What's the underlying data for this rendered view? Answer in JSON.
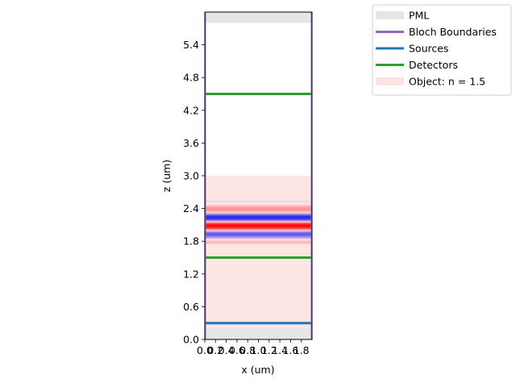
{
  "chart_data": {
    "type": "heatmap",
    "xlabel": "x (um)",
    "ylabel": "z (um)",
    "xlim": [
      0.0,
      2.0
    ],
    "ylim": [
      0.0,
      6.0
    ],
    "x_ticks": [
      "0.0",
      "0.2",
      "0.4",
      "0.6",
      "0.8",
      "1.0",
      "1.2",
      "1.4",
      "1.6",
      "1.8"
    ],
    "x_tick_values": [
      0.0,
      0.2,
      0.4,
      0.6,
      0.8,
      1.0,
      1.2,
      1.4,
      1.6,
      1.8
    ],
    "y_ticks": [
      "0.0",
      "0.6",
      "1.2",
      "1.8",
      "2.4",
      "3.0",
      "3.6",
      "4.2",
      "4.8",
      "5.4"
    ],
    "y_tick_values": [
      0.0,
      0.6,
      1.2,
      1.8,
      2.4,
      3.0,
      3.6,
      4.2,
      4.8,
      5.4
    ],
    "legend_position": "outside-top-right",
    "legend": [
      {
        "label": "PML",
        "color": "#e6e6e6",
        "style": "patch"
      },
      {
        "label": "Bloch Boundaries",
        "color": "#9467bd",
        "style": "line"
      },
      {
        "label": "Sources",
        "color": "#1f77b4",
        "style": "line"
      },
      {
        "label": "Detectors",
        "color": "#2ca02c",
        "style": "line"
      },
      {
        "label": "Object: n = 1.5",
        "color": "#fde2e2",
        "style": "patch"
      }
    ],
    "pml": [
      {
        "z0": 0.0,
        "z1": 0.2
      },
      {
        "z0": 5.8,
        "z1": 6.0
      }
    ],
    "bloch_boundaries_x": [
      0.0,
      2.0
    ],
    "sources_z": [
      0.3
    ],
    "detectors_z": [
      1.5,
      4.5
    ],
    "object": {
      "z0": 0.0,
      "z1": 3.0,
      "n": 1.5
    },
    "field": {
      "z_center": 2.12,
      "wavelength": 0.33,
      "envelope_sigma": 0.18,
      "z_range": [
        1.75,
        2.55
      ]
    }
  }
}
